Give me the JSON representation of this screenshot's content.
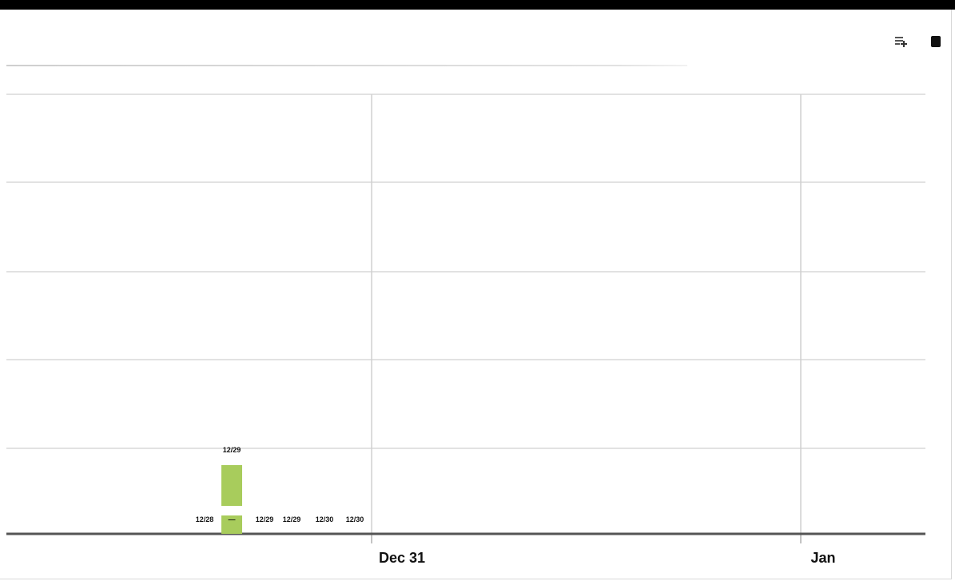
{
  "toolbar": {
    "add_icon": "add-row-icon",
    "menu_icon": "square-menu-icon"
  },
  "chart_data": {
    "type": "bar",
    "title": "",
    "xlabel": "",
    "ylabel": "",
    "grid": true,
    "y_gridlines": 6,
    "x_tick_labels": [
      "Dec 31",
      "Jan"
    ],
    "x_range": [
      "Dec 30",
      "Jan 1"
    ],
    "bar_color": "#a8cc5c",
    "series": [
      {
        "values": [
          {
            "x": "12/29",
            "value": 1,
            "label": "12/29"
          }
        ]
      }
    ],
    "baseline_labels": [
      "12/28",
      "—",
      "12/29",
      "12/29",
      "12/30",
      "12/30"
    ]
  }
}
